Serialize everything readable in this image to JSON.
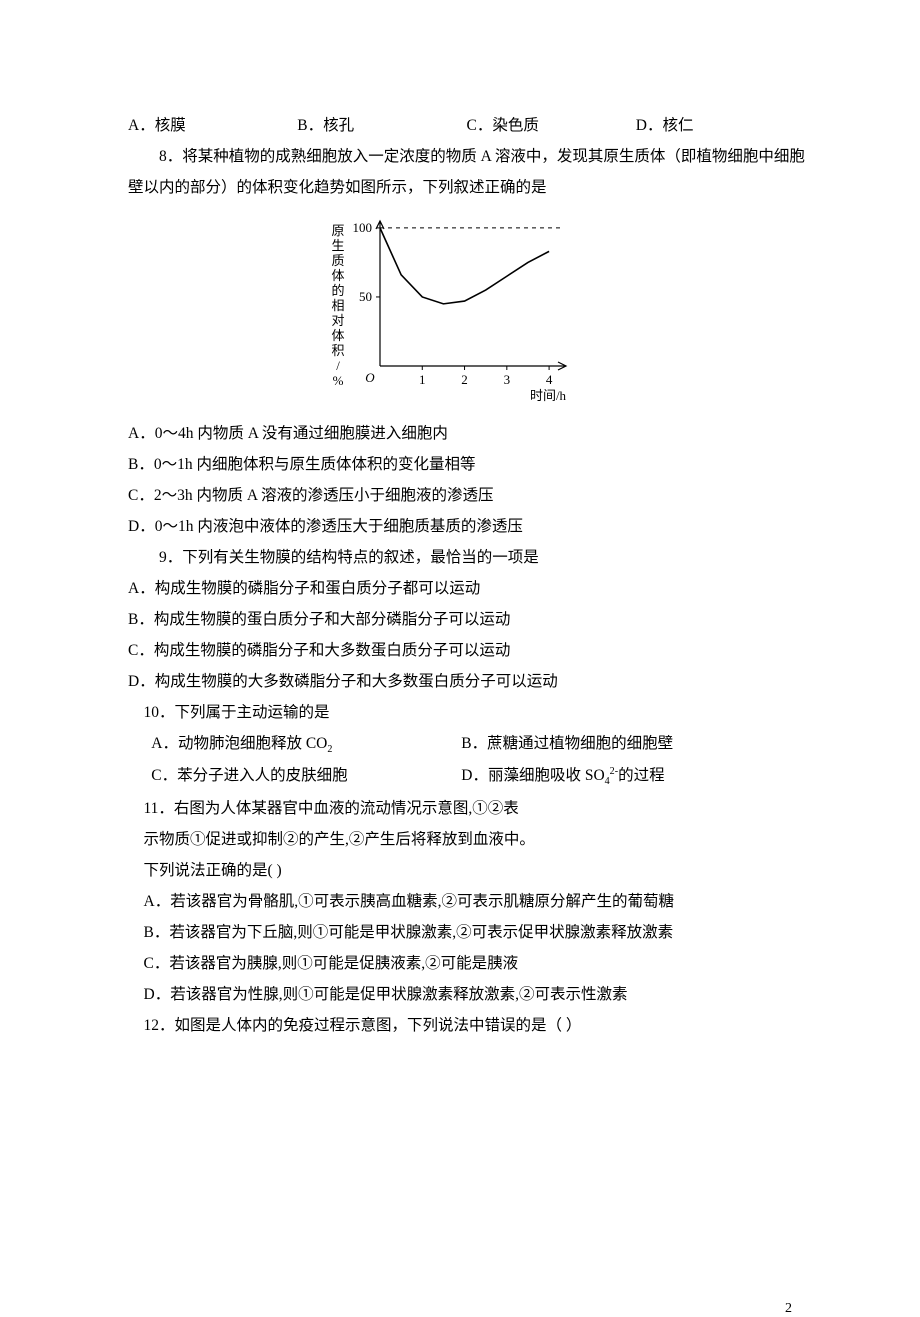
{
  "q7": {
    "opts": {
      "a": "A．核膜",
      "b": "B．核孔",
      "c": "C．染色质",
      "d": "D．核仁"
    }
  },
  "q8": {
    "stem": "8．将某种植物的成熟细胞放入一定浓度的物质 A 溶液中，发现其原生质体（即植物细胞中细胞壁以内的部分）的体积变化趋势如图所示，下列叙述正确的是",
    "chart": {
      "type": "line",
      "xlabel": "时间/h",
      "ylabel": "原生质体的相对体积/%",
      "xlim": [
        0,
        4.4
      ],
      "ylim": [
        0,
        105
      ],
      "xticks": [
        0,
        1,
        2,
        3,
        4
      ],
      "yticks": [
        50,
        100
      ],
      "origin_label": "O",
      "curve": [
        {
          "x": 0,
          "y": 100
        },
        {
          "x": 0.5,
          "y": 66
        },
        {
          "x": 1.0,
          "y": 50
        },
        {
          "x": 1.5,
          "y": 45
        },
        {
          "x": 2.0,
          "y": 47
        },
        {
          "x": 2.5,
          "y": 55
        },
        {
          "x": 3.0,
          "y": 65
        },
        {
          "x": 3.5,
          "y": 75
        },
        {
          "x": 4.0,
          "y": 83
        }
      ],
      "dashed_y": 100,
      "line_color": "#000000",
      "axis_color": "#000000",
      "bg": "#ffffff",
      "font_size": 13
    },
    "opts": {
      "a": "A．0～4h 内物质 A 没有通过细胞膜进入细胞内",
      "b": "B．0～1h 内细胞体积与原生质体体积的变化量相等",
      "c": "C．2～3h 内物质 A 溶液的渗透压小于细胞液的渗透压",
      "d": "D．0～1h 内液泡中液体的渗透压大于细胞质基质的渗透压"
    }
  },
  "q9": {
    "stem": "9．下列有关生物膜的结构特点的叙述，最恰当的一项是",
    "opts": {
      "a": "A．构成生物膜的磷脂分子和蛋白质分子都可以运动",
      "b": "B．构成生物膜的蛋白质分子和大部分磷脂分子可以运动",
      "c": "C．构成生物膜的磷脂分子和大多数蛋白质分子可以运动",
      "d": "D．构成生物膜的大多数磷脂分子和大多数蛋白质分子可以运动"
    }
  },
  "q10": {
    "stem": "10．下列属于主动运输的是",
    "opts": {
      "a_pre": "A．动物肺泡细胞释放 CO",
      "b": "B．蔗糖通过植物细胞的细胞壁",
      "c": "C．苯分子进入人的皮肤细胞",
      "d_pre": "D．丽藻细胞吸收 SO",
      "d_post": "的过程"
    }
  },
  "q11": {
    "stem1": "11．右图为人体某器官中血液的流动情况示意图,①②表",
    "stem2": "示物质①促进或抑制②的产生,②产生后将释放到血液中。",
    "stem3": "下列说法正确的是(        )",
    "opts": {
      "a": "A．若该器官为骨骼肌,①可表示胰高血糖素,②可表示肌糖原分解产生的葡萄糖",
      "b": "B．若该器官为下丘脑,则①可能是甲状腺激素,②可表示促甲状腺激素释放激素",
      "c": "C．若该器官为胰腺,则①可能是促胰液素,②可能是胰液",
      "d": "D．若该器官为性腺,则①可能是促甲状腺激素释放激素,②可表示性激素"
    }
  },
  "q12": {
    "stem": "12．如图是人体内的免疫过程示意图，下列说法中错误的是（     ）"
  },
  "page_number": "2"
}
